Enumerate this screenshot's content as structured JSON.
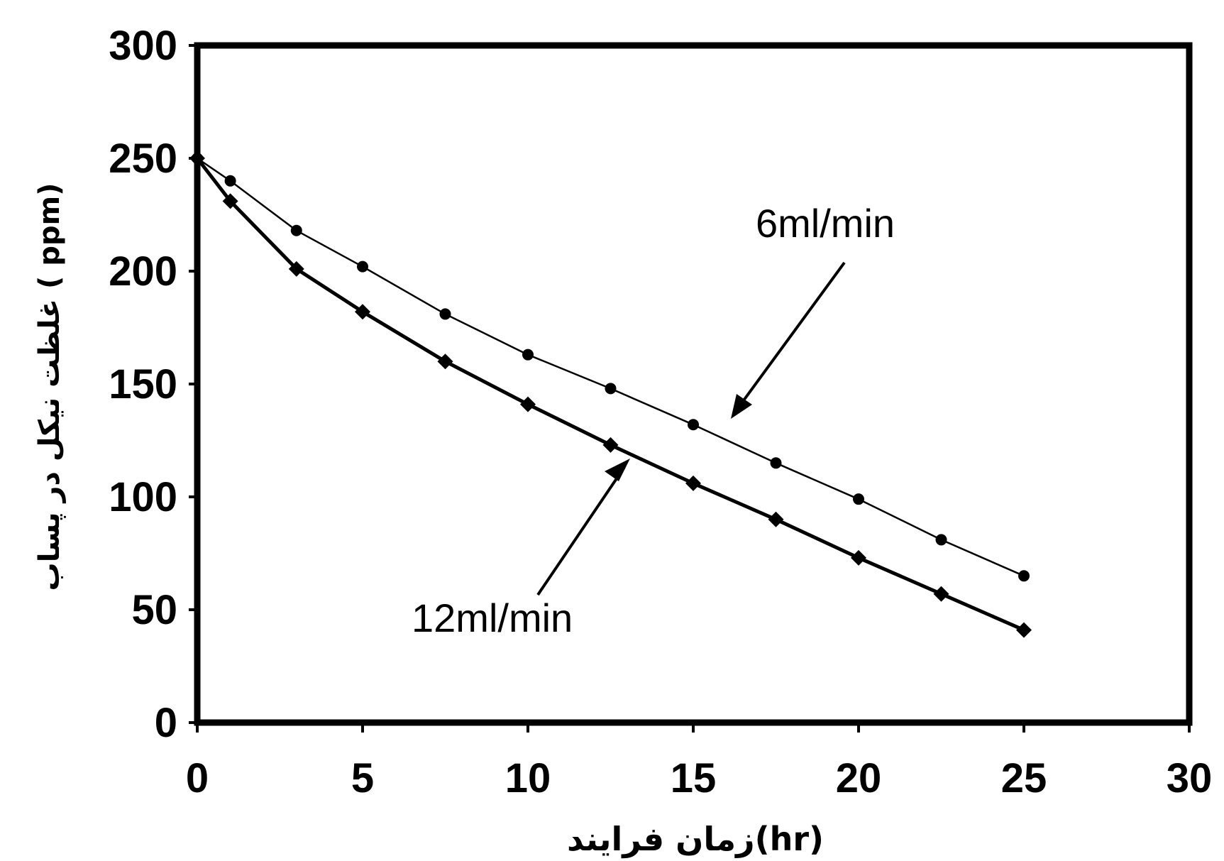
{
  "chart_data": {
    "type": "line",
    "title": "",
    "xlabel": "زمان فرایند(hr)",
    "ylabel": "غلظت نیکل در پساب ( ppm)",
    "xlim": [
      0,
      30
    ],
    "ylim": [
      0,
      300
    ],
    "xticks": [
      "0",
      "5",
      "10",
      "15",
      "20",
      "25",
      "30"
    ],
    "yticks": [
      "0",
      "50",
      "100",
      "150",
      "200",
      "250",
      "300"
    ],
    "grid": false,
    "legend": "none",
    "series": [
      {
        "name": "6ml/min",
        "marker": "circle",
        "color": "#000000",
        "x": [
          0,
          1,
          3,
          5,
          7.5,
          10,
          12.5,
          15,
          17.5,
          20,
          22.5,
          25
        ],
        "y": [
          250,
          240,
          218,
          202,
          181,
          163,
          148,
          132,
          115,
          99,
          81,
          65
        ]
      },
      {
        "name": "12ml/min",
        "marker": "diamond",
        "color": "#000000",
        "x": [
          0,
          1,
          3,
          5,
          7.5,
          10,
          12.5,
          15,
          17.5,
          20,
          22.5,
          25
        ],
        "y": [
          250,
          231,
          201,
          182,
          160,
          141,
          123,
          106,
          90,
          73,
          57,
          41
        ]
      }
    ],
    "annotations": [
      {
        "text": "6ml/min",
        "series": "6ml/min"
      },
      {
        "text": "12ml/min",
        "series": "12ml/min"
      }
    ]
  }
}
